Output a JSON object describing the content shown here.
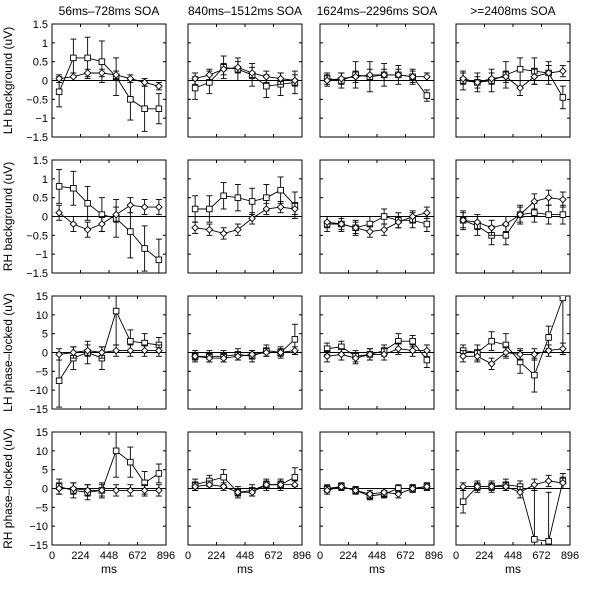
{
  "column_titles": [
    "56ms–728ms SOA",
    "840ms–1512ms SOA",
    "1624ms–2296ms SOA",
    ">=2408ms SOA"
  ],
  "row_labels": [
    "LH background (uV)",
    "RH background (uV)",
    "LH phase–locked (uV)",
    "RH phase–locked (uV)"
  ],
  "xlabel": "ms",
  "x_ticks": [
    "0",
    "224",
    "448",
    "672",
    "896"
  ],
  "y_ticks_small": [
    "1.5",
    "1",
    "0.5",
    "0",
    "−0.5",
    "−1",
    "−1.5"
  ],
  "y_ticks_large": [
    "15",
    "10",
    "5",
    "0",
    "−5",
    "−10",
    "−15"
  ],
  "chart_data": {
    "type": "line",
    "layout": "4x4 small multiples",
    "x": [
      56,
      168,
      280,
      392,
      504,
      616,
      728,
      840
    ],
    "xlim": [
      0,
      896
    ],
    "markers": [
      "square",
      "diamond"
    ],
    "panels": [
      {
        "row": 0,
        "col": 0,
        "ylim": [
          -1.5,
          1.5
        ],
        "series": [
          {
            "marker": "square",
            "values": [
              -0.3,
              0.6,
              0.6,
              0.5,
              0.1,
              -0.5,
              -0.75,
              -0.75
            ],
            "err": [
              0.4,
              0.5,
              0.55,
              0.55,
              0.5,
              0.55,
              0.6,
              0.4
            ]
          },
          {
            "marker": "diamond",
            "values": [
              0.05,
              0.1,
              0.2,
              0.2,
              0.15,
              0.05,
              -0.05,
              -0.15
            ],
            "err": [
              0.1,
              0.1,
              0.1,
              0.1,
              0.1,
              0.1,
              0.1,
              0.1
            ]
          }
        ]
      },
      {
        "row": 0,
        "col": 1,
        "ylim": [
          -1.5,
          1.5
        ],
        "series": [
          {
            "marker": "square",
            "values": [
              -0.2,
              -0.05,
              0.35,
              0.3,
              0.15,
              -0.15,
              -0.1,
              -0.05
            ],
            "err": [
              0.3,
              0.3,
              0.3,
              0.3,
              0.3,
              0.3,
              0.3,
              0.3
            ]
          },
          {
            "marker": "diamond",
            "values": [
              0.05,
              0.15,
              0.3,
              0.35,
              0.2,
              0.1,
              0.05,
              0.0
            ],
            "err": [
              0.15,
              0.15,
              0.15,
              0.15,
              0.15,
              0.15,
              0.15,
              0.15
            ]
          }
        ]
      },
      {
        "row": 0,
        "col": 2,
        "ylim": [
          -1.5,
          1.5
        ],
        "series": [
          {
            "marker": "square",
            "values": [
              0.05,
              0.0,
              0.15,
              0.1,
              0.15,
              0.15,
              0.1,
              -0.4
            ],
            "err": [
              0.15,
              0.2,
              0.35,
              0.4,
              0.3,
              0.25,
              0.2,
              0.15
            ]
          },
          {
            "marker": "diamond",
            "values": [
              0.0,
              0.05,
              0.1,
              0.15,
              0.15,
              0.15,
              0.1,
              0.1
            ],
            "err": [
              0.15,
              0.15,
              0.15,
              0.15,
              0.15,
              0.15,
              0.15,
              0.1
            ]
          }
        ]
      },
      {
        "row": 0,
        "col": 3,
        "ylim": [
          -1.5,
          1.5
        ],
        "series": [
          {
            "marker": "square",
            "values": [
              0.0,
              -0.05,
              0.0,
              0.15,
              0.3,
              0.25,
              0.2,
              -0.45
            ],
            "err": [
              0.25,
              0.25,
              0.3,
              0.35,
              0.3,
              0.35,
              0.3,
              0.3
            ]
          },
          {
            "marker": "diamond",
            "values": [
              0.05,
              -0.05,
              0.05,
              0.1,
              -0.2,
              0.1,
              0.2,
              0.25
            ],
            "err": [
              0.15,
              0.15,
              0.15,
              0.15,
              0.2,
              0.2,
              0.2,
              0.15
            ]
          }
        ]
      },
      {
        "row": 1,
        "col": 0,
        "ylim": [
          -1.5,
          1.5
        ],
        "series": [
          {
            "marker": "square",
            "values": [
              0.8,
              0.75,
              0.35,
              0.05,
              -0.05,
              -0.4,
              -0.85,
              -1.15
            ],
            "err": [
              0.45,
              0.45,
              0.45,
              0.45,
              0.5,
              0.7,
              0.6,
              0.55
            ]
          },
          {
            "marker": "diamond",
            "values": [
              0.1,
              -0.2,
              -0.35,
              -0.2,
              0.05,
              0.3,
              0.25,
              0.25
            ],
            "err": [
              0.2,
              0.2,
              0.2,
              0.2,
              0.2,
              0.2,
              0.2,
              0.2
            ]
          }
        ]
      },
      {
        "row": 1,
        "col": 1,
        "ylim": [
          -1.5,
          1.5
        ],
        "series": [
          {
            "marker": "square",
            "values": [
              0.2,
              0.2,
              0.55,
              0.5,
              0.4,
              0.5,
              0.7,
              0.3
            ],
            "err": [
              0.35,
              0.35,
              0.35,
              0.35,
              0.35,
              0.35,
              0.35,
              0.35
            ]
          },
          {
            "marker": "diamond",
            "values": [
              -0.3,
              -0.35,
              -0.45,
              -0.35,
              -0.05,
              0.2,
              0.25,
              0.2
            ],
            "err": [
              0.15,
              0.15,
              0.15,
              0.15,
              0.15,
              0.15,
              0.15,
              0.15
            ]
          }
        ]
      },
      {
        "row": 1,
        "col": 2,
        "ylim": [
          -1.5,
          1.5
        ],
        "series": [
          {
            "marker": "square",
            "values": [
              -0.2,
              -0.2,
              -0.3,
              -0.2,
              0.0,
              -0.1,
              -0.1,
              -0.2
            ],
            "err": [
              0.2,
              0.2,
              0.2,
              0.2,
              0.2,
              0.2,
              0.2,
              0.2
            ]
          },
          {
            "marker": "diamond",
            "values": [
              -0.15,
              -0.2,
              -0.3,
              -0.4,
              -0.35,
              -0.15,
              0.0,
              0.1
            ],
            "err": [
              0.15,
              0.15,
              0.15,
              0.15,
              0.15,
              0.15,
              0.15,
              0.15
            ]
          }
        ]
      },
      {
        "row": 1,
        "col": 3,
        "ylim": [
          -1.5,
          1.5
        ],
        "series": [
          {
            "marker": "square",
            "values": [
              -0.1,
              -0.25,
              -0.5,
              -0.5,
              0.05,
              0.1,
              0.05,
              0.05
            ],
            "err": [
              0.25,
              0.25,
              0.25,
              0.25,
              0.25,
              0.25,
              0.25,
              0.25
            ]
          },
          {
            "marker": "diamond",
            "values": [
              -0.1,
              -0.15,
              -0.3,
              -0.2,
              0.05,
              0.4,
              0.5,
              0.45
            ],
            "err": [
              0.2,
              0.2,
              0.2,
              0.2,
              0.2,
              0.2,
              0.2,
              0.2
            ]
          }
        ]
      },
      {
        "row": 2,
        "col": 0,
        "ylim": [
          -15,
          15
        ],
        "series": [
          {
            "marker": "square",
            "values": [
              -7.5,
              -1.5,
              0.0,
              -1.5,
              11.0,
              3.0,
              2.5,
              2.0
            ],
            "err": [
              7.0,
              3.0,
              3.0,
              3.0,
              9.0,
              3.0,
              2.5,
              2.0
            ]
          },
          {
            "marker": "diamond",
            "values": [
              -0.5,
              0.0,
              0.5,
              0.0,
              0.5,
              0.5,
              0.5,
              0.5
            ],
            "err": [
              1.5,
              1.5,
              1.5,
              1.5,
              1.5,
              1.5,
              1.5,
              1.5
            ]
          }
        ]
      },
      {
        "row": 2,
        "col": 1,
        "ylim": [
          -15,
          15
        ],
        "series": [
          {
            "marker": "square",
            "values": [
              -1.0,
              -1.0,
              -1.0,
              -0.5,
              -1.0,
              0.5,
              0.0,
              3.5
            ],
            "err": [
              1.5,
              1.5,
              1.5,
              1.5,
              1.5,
              1.5,
              1.5,
              4.0
            ]
          },
          {
            "marker": "diamond",
            "values": [
              -1.0,
              -1.5,
              -1.5,
              -1.0,
              -0.5,
              0.0,
              0.0,
              0.5
            ],
            "err": [
              1.0,
              1.0,
              1.0,
              1.0,
              1.0,
              1.0,
              1.0,
              1.0
            ]
          }
        ]
      },
      {
        "row": 2,
        "col": 2,
        "ylim": [
          -15,
          15
        ],
        "series": [
          {
            "marker": "square",
            "values": [
              1.0,
              1.5,
              -1.0,
              -0.5,
              0.5,
              3.0,
              3.0,
              -2.0
            ],
            "err": [
              1.5,
              1.5,
              1.5,
              1.5,
              1.5,
              2.0,
              1.5,
              2.0
            ]
          },
          {
            "marker": "diamond",
            "values": [
              -1.0,
              -0.5,
              -1.5,
              -0.5,
              -0.5,
              1.0,
              0.5,
              0.5
            ],
            "err": [
              1.5,
              1.5,
              1.5,
              1.5,
              1.5,
              1.5,
              1.5,
              1.5
            ]
          }
        ]
      },
      {
        "row": 2,
        "col": 3,
        "ylim": [
          -15,
          15
        ],
        "series": [
          {
            "marker": "square",
            "values": [
              0.5,
              0.0,
              3.0,
              2.0,
              -2.5,
              -6.0,
              4.0,
              14.5
            ],
            "err": [
              1.5,
              2.0,
              2.5,
              3.0,
              3.0,
              4.5,
              3.0,
              15.0
            ]
          },
          {
            "marker": "diamond",
            "values": [
              -1.0,
              -1.0,
              -3.0,
              0.0,
              -0.5,
              -0.5,
              0.5,
              1.0
            ],
            "err": [
              1.5,
              1.5,
              1.5,
              1.5,
              1.5,
              1.5,
              1.5,
              1.5
            ]
          }
        ]
      },
      {
        "row": 3,
        "col": 0,
        "ylim": [
          -15,
          15
        ],
        "series": [
          {
            "marker": "square",
            "values": [
              0.5,
              -0.5,
              -1.0,
              -0.5,
              10.0,
              7.0,
              1.5,
              4.0
            ],
            "err": [
              2.0,
              2.0,
              2.0,
              2.0,
              7.0,
              4.0,
              3.0,
              2.5
            ]
          },
          {
            "marker": "diamond",
            "values": [
              0.0,
              0.0,
              -0.5,
              -0.5,
              -0.5,
              -0.5,
              -0.5,
              -0.5
            ],
            "err": [
              1.5,
              1.5,
              1.5,
              1.5,
              1.5,
              1.5,
              1.5,
              1.5
            ]
          }
        ]
      },
      {
        "row": 3,
        "col": 1,
        "ylim": [
          -15,
          15
        ],
        "series": [
          {
            "marker": "square",
            "values": [
              1.0,
              2.0,
              3.0,
              -1.0,
              -0.5,
              1.0,
              1.0,
              3.0
            ],
            "err": [
              1.5,
              1.5,
              2.0,
              1.5,
              1.5,
              1.5,
              1.5,
              2.5
            ]
          },
          {
            "marker": "diamond",
            "values": [
              0.5,
              1.0,
              0.5,
              -1.0,
              -1.0,
              1.0,
              1.0,
              1.0
            ],
            "err": [
              1.0,
              1.0,
              1.0,
              1.0,
              1.0,
              1.0,
              1.0,
              1.0
            ]
          }
        ]
      },
      {
        "row": 3,
        "col": 2,
        "ylim": [
          -15,
          15
        ],
        "series": [
          {
            "marker": "square",
            "values": [
              0.0,
              0.5,
              -0.5,
              -2.0,
              -1.5,
              0.0,
              0.0,
              0.5
            ],
            "err": [
              1.0,
              1.0,
              1.0,
              1.0,
              1.0,
              1.0,
              1.0,
              1.0
            ]
          },
          {
            "marker": "diamond",
            "values": [
              -0.5,
              0.5,
              -0.5,
              -1.5,
              -1.0,
              -1.5,
              0.0,
              0.5
            ],
            "err": [
              1.0,
              1.0,
              1.0,
              1.0,
              1.0,
              1.0,
              1.0,
              1.0
            ]
          }
        ]
      },
      {
        "row": 3,
        "col": 3,
        "ylim": [
          -15,
          15
        ],
        "series": [
          {
            "marker": "square",
            "values": [
              -3.5,
              0.5,
              0.5,
              1.0,
              0.5,
              -13.5,
              -14.0,
              2.0
            ],
            "err": [
              3.0,
              1.5,
              1.5,
              1.5,
              1.5,
              13.0,
              13.0,
              2.0
            ]
          },
          {
            "marker": "diamond",
            "values": [
              0.5,
              0.5,
              0.5,
              0.5,
              -1.0,
              1.0,
              2.0,
              1.5
            ],
            "err": [
              1.0,
              1.0,
              1.0,
              1.0,
              1.5,
              1.5,
              1.5,
              1.5
            ]
          }
        ]
      }
    ]
  }
}
